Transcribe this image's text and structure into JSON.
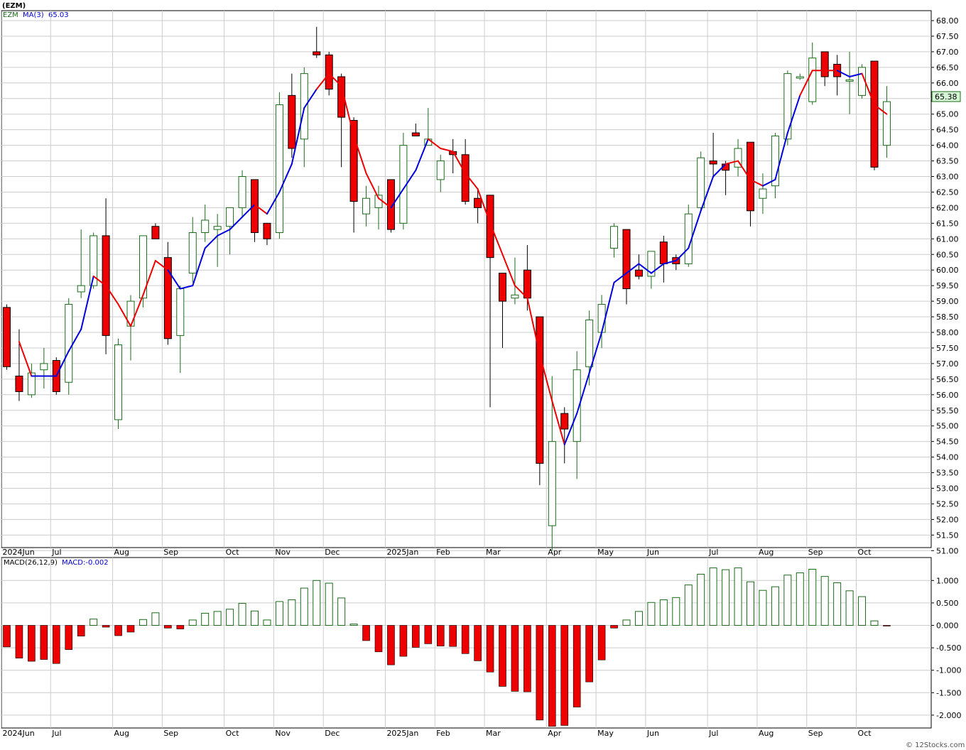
{
  "header": {
    "symbol": "(EZM)",
    "price_legend_symbol": "EZM",
    "ma_label": "MA(3)",
    "ma_value": "65.03",
    "last_price": "65.38",
    "macd_label": "MACD(26,12,9)",
    "macd_value": "MACD:-0.002",
    "watermark": "© 12Stocks.com"
  },
  "colors": {
    "up_candle_border": "#1a6b1a",
    "down_candle": "#ee0000",
    "ma_up": "#0000dd",
    "ma_down": "#ee0000",
    "grid": "#cccccc",
    "last_price_box": "#d6f5d6",
    "price_legend": "#1a6b1a",
    "ma_legend": "#0000cc"
  },
  "chart_data": [
    {
      "type": "candlestick",
      "title": "(EZM)",
      "timeframe": "weekly",
      "x_labels": [
        {
          "label": "2024Jun",
          "week": 0
        },
        {
          "label": "Jul",
          "week": 4
        },
        {
          "label": "Aug",
          "week": 9
        },
        {
          "label": "Sep",
          "week": 13
        },
        {
          "label": "Oct",
          "week": 18
        },
        {
          "label": "Nov",
          "week": 22
        },
        {
          "label": "Dec",
          "week": 26
        },
        {
          "label": "2025Jan",
          "week": 31
        },
        {
          "label": "Feb",
          "week": 35
        },
        {
          "label": "Mar",
          "week": 39
        },
        {
          "label": "Apr",
          "week": 44
        },
        {
          "label": "May",
          "week": 48
        },
        {
          "label": "Jun",
          "week": 52
        },
        {
          "label": "Jul",
          "week": 57
        },
        {
          "label": "Aug",
          "week": 61
        },
        {
          "label": "Sep",
          "week": 65
        },
        {
          "label": "Oct",
          "week": 69
        }
      ],
      "y_ticks": [
        "68.00",
        "67.50",
        "67.00",
        "66.50",
        "66.00",
        "65.50",
        "65.00",
        "64.50",
        "64.00",
        "63.50",
        "63.00",
        "62.50",
        "62.00",
        "61.50",
        "61.00",
        "60.50",
        "60.00",
        "59.50",
        "59.00",
        "58.50",
        "58.00",
        "57.50",
        "57.00",
        "56.50",
        "56.00",
        "55.50",
        "55.00",
        "54.50",
        "54.00",
        "53.50",
        "53.00",
        "52.50",
        "52.00",
        "51.50",
        "51.00"
      ],
      "ylim": [
        50.8,
        68.3
      ],
      "candles": [
        {
          "o": 58.8,
          "h": 58.9,
          "l": 56.8,
          "c": 56.9
        },
        {
          "o": 56.6,
          "h": 58.1,
          "l": 55.8,
          "c": 56.1
        },
        {
          "o": 56.0,
          "h": 57.0,
          "l": 55.9,
          "c": 56.7
        },
        {
          "o": 56.8,
          "h": 57.5,
          "l": 56.2,
          "c": 57.0
        },
        {
          "o": 57.1,
          "h": 57.2,
          "l": 56.0,
          "c": 56.1
        },
        {
          "o": 56.4,
          "h": 59.1,
          "l": 56.0,
          "c": 58.9
        },
        {
          "o": 59.3,
          "h": 61.3,
          "l": 59.1,
          "c": 59.5
        },
        {
          "o": 59.5,
          "h": 61.2,
          "l": 59.4,
          "c": 61.1
        },
        {
          "o": 61.1,
          "h": 62.3,
          "l": 57.3,
          "c": 57.9
        },
        {
          "o": 55.2,
          "h": 57.8,
          "l": 54.9,
          "c": 57.6
        },
        {
          "o": 58.2,
          "h": 59.2,
          "l": 57.1,
          "c": 59.0
        },
        {
          "o": 59.1,
          "h": 61.1,
          "l": 58.8,
          "c": 61.1
        },
        {
          "o": 61.4,
          "h": 61.5,
          "l": 61.0,
          "c": 61.0
        },
        {
          "o": 60.4,
          "h": 60.9,
          "l": 57.6,
          "c": 57.8
        },
        {
          "o": 57.9,
          "h": 59.5,
          "l": 56.7,
          "c": 59.4
        },
        {
          "o": 59.9,
          "h": 61.7,
          "l": 59.6,
          "c": 61.2
        },
        {
          "o": 61.2,
          "h": 62.1,
          "l": 60.9,
          "c": 61.6
        },
        {
          "o": 61.3,
          "h": 61.8,
          "l": 60.1,
          "c": 61.4
        },
        {
          "o": 61.4,
          "h": 61.9,
          "l": 60.5,
          "c": 62.0
        },
        {
          "o": 62.0,
          "h": 63.2,
          "l": 61.7,
          "c": 63.0
        },
        {
          "o": 62.9,
          "h": 62.9,
          "l": 60.9,
          "c": 61.2
        },
        {
          "o": 61.5,
          "h": 61.5,
          "l": 60.8,
          "c": 61.0
        },
        {
          "o": 61.2,
          "h": 65.7,
          "l": 61.0,
          "c": 65.3
        },
        {
          "o": 65.6,
          "h": 66.3,
          "l": 63.6,
          "c": 63.9
        },
        {
          "o": 64.2,
          "h": 66.5,
          "l": 63.3,
          "c": 66.3
        },
        {
          "o": 67.0,
          "h": 67.8,
          "l": 66.8,
          "c": 66.9
        },
        {
          "o": 66.9,
          "h": 67.0,
          "l": 65.6,
          "c": 65.8
        },
        {
          "o": 66.2,
          "h": 66.3,
          "l": 63.3,
          "c": 64.9
        },
        {
          "o": 64.8,
          "h": 64.9,
          "l": 61.2,
          "c": 62.2
        },
        {
          "o": 61.8,
          "h": 62.7,
          "l": 61.4,
          "c": 62.3
        },
        {
          "o": 62.0,
          "h": 62.7,
          "l": 61.3,
          "c": 62.4
        },
        {
          "o": 62.9,
          "h": 62.9,
          "l": 61.2,
          "c": 61.3
        },
        {
          "o": 61.5,
          "h": 64.4,
          "l": 61.3,
          "c": 64.0
        },
        {
          "o": 64.4,
          "h": 64.7,
          "l": 64.3,
          "c": 64.3
        },
        {
          "o": 64.0,
          "h": 65.2,
          "l": 64.0,
          "c": 64.2
        },
        {
          "o": 62.9,
          "h": 63.7,
          "l": 62.5,
          "c": 63.5
        },
        {
          "o": 63.8,
          "h": 64.2,
          "l": 63.1,
          "c": 63.7
        },
        {
          "o": 63.7,
          "h": 64.2,
          "l": 62.1,
          "c": 62.2
        },
        {
          "o": 62.3,
          "h": 62.6,
          "l": 61.5,
          "c": 62.0
        },
        {
          "o": 62.4,
          "h": 62.4,
          "l": 55.6,
          "c": 60.4
        },
        {
          "o": 59.9,
          "h": 59.9,
          "l": 57.5,
          "c": 59.0
        },
        {
          "o": 59.1,
          "h": 60.4,
          "l": 58.9,
          "c": 59.2
        },
        {
          "o": 60.0,
          "h": 60.8,
          "l": 58.7,
          "c": 59.1
        },
        {
          "o": 58.5,
          "h": 58.5,
          "l": 53.1,
          "c": 53.8
        },
        {
          "o": 51.8,
          "h": 56.6,
          "l": 51.0,
          "c": 54.5
        },
        {
          "o": 55.4,
          "h": 55.6,
          "l": 53.8,
          "c": 54.9
        },
        {
          "o": 54.5,
          "h": 57.4,
          "l": 53.3,
          "c": 56.8
        },
        {
          "o": 56.9,
          "h": 58.7,
          "l": 56.3,
          "c": 58.4
        },
        {
          "o": 58.0,
          "h": 59.2,
          "l": 57.5,
          "c": 58.9
        },
        {
          "o": 60.7,
          "h": 61.5,
          "l": 60.4,
          "c": 61.4
        },
        {
          "o": 61.3,
          "h": 61.3,
          "l": 58.9,
          "c": 59.4
        },
        {
          "o": 60.0,
          "h": 60.5,
          "l": 59.7,
          "c": 59.8
        },
        {
          "o": 59.8,
          "h": 60.6,
          "l": 59.4,
          "c": 60.6
        },
        {
          "o": 60.9,
          "h": 61.1,
          "l": 59.6,
          "c": 60.2
        },
        {
          "o": 60.4,
          "h": 60.5,
          "l": 60.0,
          "c": 60.2
        },
        {
          "o": 60.2,
          "h": 62.1,
          "l": 60.1,
          "c": 61.8
        },
        {
          "o": 62.0,
          "h": 63.8,
          "l": 61.9,
          "c": 63.6
        },
        {
          "o": 63.5,
          "h": 64.4,
          "l": 63.0,
          "c": 63.4
        },
        {
          "o": 63.4,
          "h": 63.5,
          "l": 62.4,
          "c": 63.2
        },
        {
          "o": 63.3,
          "h": 64.2,
          "l": 63.0,
          "c": 63.9
        },
        {
          "o": 64.1,
          "h": 64.1,
          "l": 61.4,
          "c": 61.9
        },
        {
          "o": 62.3,
          "h": 63.1,
          "l": 61.8,
          "c": 62.6
        },
        {
          "o": 62.7,
          "h": 64.4,
          "l": 62.3,
          "c": 64.3
        },
        {
          "o": 64.2,
          "h": 66.4,
          "l": 64.0,
          "c": 66.3
        },
        {
          "o": 66.2,
          "h": 66.3,
          "l": 66.1,
          "c": 66.2
        },
        {
          "o": 65.4,
          "h": 67.3,
          "l": 65.3,
          "c": 66.8
        },
        {
          "o": 67.0,
          "h": 67.0,
          "l": 65.9,
          "c": 66.2
        },
        {
          "o": 66.6,
          "h": 66.9,
          "l": 65.6,
          "c": 66.2
        },
        {
          "o": 66.1,
          "h": 67.0,
          "l": 65.0,
          "c": 66.1
        },
        {
          "o": 65.6,
          "h": 66.6,
          "l": 65.5,
          "c": 66.5
        },
        {
          "o": 66.7,
          "h": 66.7,
          "l": 63.2,
          "c": 63.3
        },
        {
          "o": 64.0,
          "h": 65.9,
          "l": 63.6,
          "c": 65.4
        }
      ],
      "ma3": [
        null,
        57.7,
        56.6,
        56.6,
        56.6,
        57.4,
        58.1,
        59.8,
        59.5,
        58.9,
        58.2,
        59.2,
        60.3,
        60.0,
        59.4,
        59.5,
        60.7,
        61.1,
        61.3,
        61.7,
        62.1,
        61.8,
        62.5,
        63.4,
        65.2,
        65.8,
        66.3,
        65.9,
        64.3,
        63.1,
        62.3,
        62.0,
        62.6,
        63.2,
        64.2,
        63.9,
        63.8,
        63.1,
        62.6,
        61.5,
        60.5,
        59.5,
        59.1,
        57.3,
        55.8,
        54.4,
        55.4,
        56.7,
        58.0,
        59.6,
        59.9,
        60.2,
        59.9,
        60.2,
        60.3,
        60.7,
        61.9,
        63.0,
        63.4,
        63.5,
        62.9,
        62.7,
        62.9,
        64.4,
        65.6,
        66.4,
        66.4,
        66.4,
        66.2,
        66.3,
        65.3,
        65.0
      ],
      "ma3_color": [
        "down",
        "down",
        "down",
        "up",
        "up",
        "up",
        "up",
        "up",
        "down",
        "down",
        "down",
        "down",
        "down",
        "down",
        "up",
        "up",
        "up",
        "up",
        "up",
        "up",
        "up",
        "down",
        "up",
        "up",
        "up",
        "up",
        "down",
        "down",
        "down",
        "down",
        "down",
        "down",
        "up",
        "up",
        "up",
        "down",
        "down",
        "down",
        "down",
        "down",
        "down",
        "down",
        "down",
        "down",
        "down",
        "down",
        "up",
        "up",
        "up",
        "up",
        "up",
        "up",
        "up",
        "up",
        "up",
        "up",
        "up",
        "up",
        "up",
        "down",
        "down",
        "down",
        "up",
        "up",
        "up",
        "down",
        "down",
        "down",
        "up",
        "up",
        "down",
        "down"
      ]
    },
    {
      "type": "bar",
      "title": "MACD(26,12,9)",
      "y_ticks": [
        "1.000",
        "0.500",
        "0.000",
        "-0.500",
        "-1.000",
        "-1.500",
        "-2.000"
      ],
      "ylim": [
        -2.3,
        1.38
      ],
      "values": [
        -0.48,
        -0.73,
        -0.8,
        -0.76,
        -0.85,
        -0.54,
        -0.24,
        0.14,
        -0.04,
        -0.23,
        -0.15,
        0.13,
        0.28,
        -0.06,
        -0.08,
        0.12,
        0.27,
        0.31,
        0.36,
        0.49,
        0.32,
        0.12,
        0.53,
        0.57,
        0.83,
        1.0,
        0.94,
        0.61,
        0.03,
        -0.34,
        -0.59,
        -0.88,
        -0.69,
        -0.49,
        -0.41,
        -0.46,
        -0.47,
        -0.63,
        -0.79,
        -1.04,
        -1.36,
        -1.47,
        -1.48,
        -2.11,
        -2.25,
        -2.23,
        -1.82,
        -1.26,
        -0.77,
        -0.06,
        0.12,
        0.31,
        0.51,
        0.57,
        0.62,
        0.9,
        1.14,
        1.28,
        1.24,
        1.28,
        0.97,
        0.78,
        0.86,
        1.12,
        1.17,
        1.25,
        1.09,
        0.95,
        0.77,
        0.64,
        0.1,
        -0.002
      ]
    }
  ]
}
